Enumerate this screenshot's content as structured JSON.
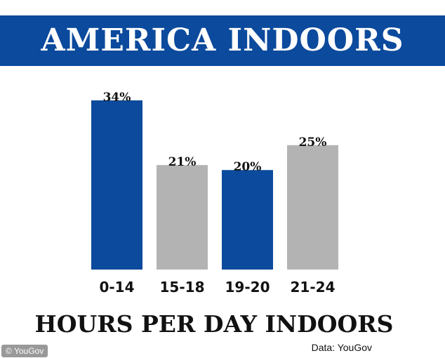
{
  "chart_data": {
    "type": "bar",
    "title": "AMERICA INDOORS",
    "xlabel": "HOURS PER DAY INDOORS",
    "ylabel": "",
    "categories": [
      "0-14",
      "15-18",
      "19-20",
      "21-24"
    ],
    "values": [
      34,
      21,
      20,
      25
    ],
    "value_labels": [
      "34%",
      "21%",
      "20%",
      "25%"
    ],
    "ylim": [
      0,
      34
    ],
    "grid": false,
    "legend": "none",
    "bar_colors": [
      "#0b4a9c",
      "#b3b3b3",
      "#0b4a9c",
      "#b3b3b3"
    ],
    "source": "Data: YouGov"
  },
  "watermark": "© YouGov",
  "colors": {
    "banner": "#0b4a9c",
    "blue_bar": "#0b4a9c",
    "gray_bar": "#b3b3b3"
  }
}
